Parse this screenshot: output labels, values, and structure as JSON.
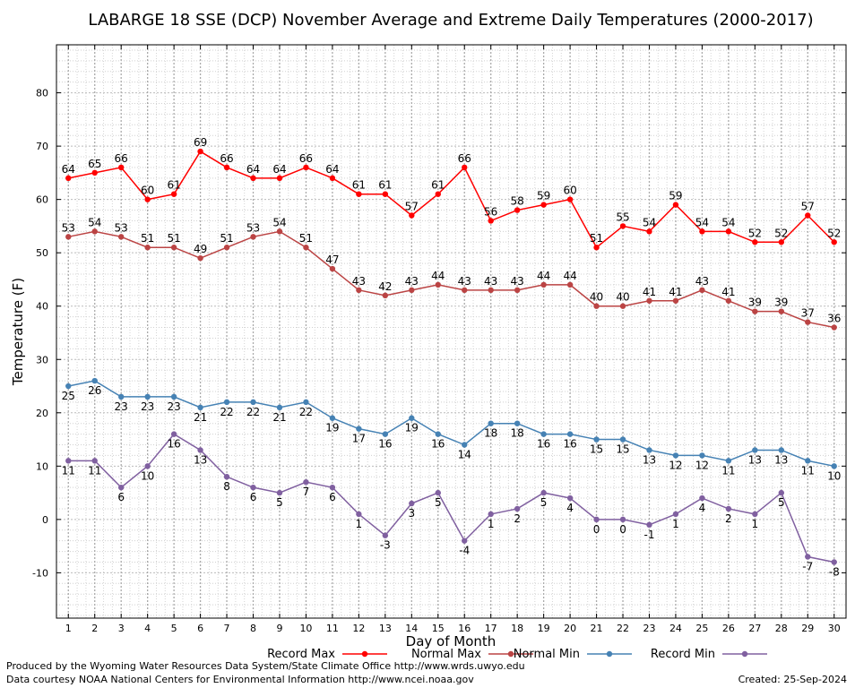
{
  "chart_data": {
    "type": "line",
    "title": "LABARGE 18 SSE (DCP) November Average and Extreme Daily Temperatures (2000-2017)",
    "xlabel": "Day of Month",
    "ylabel": "Temperature (F)",
    "x": [
      1,
      2,
      3,
      4,
      5,
      6,
      7,
      8,
      9,
      10,
      11,
      12,
      13,
      14,
      15,
      16,
      17,
      18,
      19,
      20,
      21,
      22,
      23,
      24,
      25,
      26,
      27,
      28,
      29,
      30
    ],
    "xlim": [
      0.55,
      30.45
    ],
    "ylim": [
      -18.5,
      89
    ],
    "yticks": [
      -10,
      0,
      10,
      20,
      30,
      40,
      50,
      60,
      70,
      80
    ],
    "grid": true,
    "legend_position": "bottom",
    "series": [
      {
        "name": "Record Max",
        "color": "#ff0000",
        "label_pos": "above",
        "values": [
          64,
          65,
          66,
          60,
          61,
          69,
          66,
          64,
          64,
          66,
          64,
          61,
          61,
          57,
          61,
          66,
          56,
          58,
          59,
          60,
          51,
          55,
          54,
          59,
          54,
          54,
          52,
          52,
          57,
          52
        ]
      },
      {
        "name": "Normal Max",
        "color": "#bb4444",
        "label_pos": "above",
        "values": [
          53,
          54,
          53,
          51,
          51,
          49,
          51,
          53,
          54,
          51,
          47,
          43,
          42,
          43,
          44,
          43,
          43,
          43,
          44,
          44,
          40,
          40,
          41,
          41,
          43,
          41,
          39,
          39,
          37,
          36
        ]
      },
      {
        "name": "Normal Min",
        "color": "#4682b4",
        "label_pos": "below",
        "values": [
          25,
          26,
          23,
          23,
          23,
          21,
          22,
          22,
          21,
          22,
          19,
          17,
          16,
          19,
          16,
          14,
          18,
          18,
          16,
          16,
          15,
          15,
          13,
          12,
          12,
          11,
          13,
          13,
          11,
          10
        ]
      },
      {
        "name": "Record Min",
        "color": "#8060a0",
        "label_pos": "below",
        "values": [
          11,
          11,
          6,
          10,
          16,
          13,
          8,
          6,
          5,
          7,
          6,
          1,
          -3,
          3,
          5,
          -4,
          1,
          2,
          5,
          4,
          0,
          0,
          -1,
          1,
          4,
          2,
          1,
          5,
          -7,
          -8
        ]
      }
    ]
  },
  "footer": {
    "produced_by": "Produced by the Wyoming Water Resources Data System/State Climate Office http://www.wrds.uwyo.edu",
    "courtesy": "Data courtesy NOAA National Centers for Environmental Information http://www.ncei.noaa.gov",
    "created": "Created:  25-Sep-2024"
  }
}
